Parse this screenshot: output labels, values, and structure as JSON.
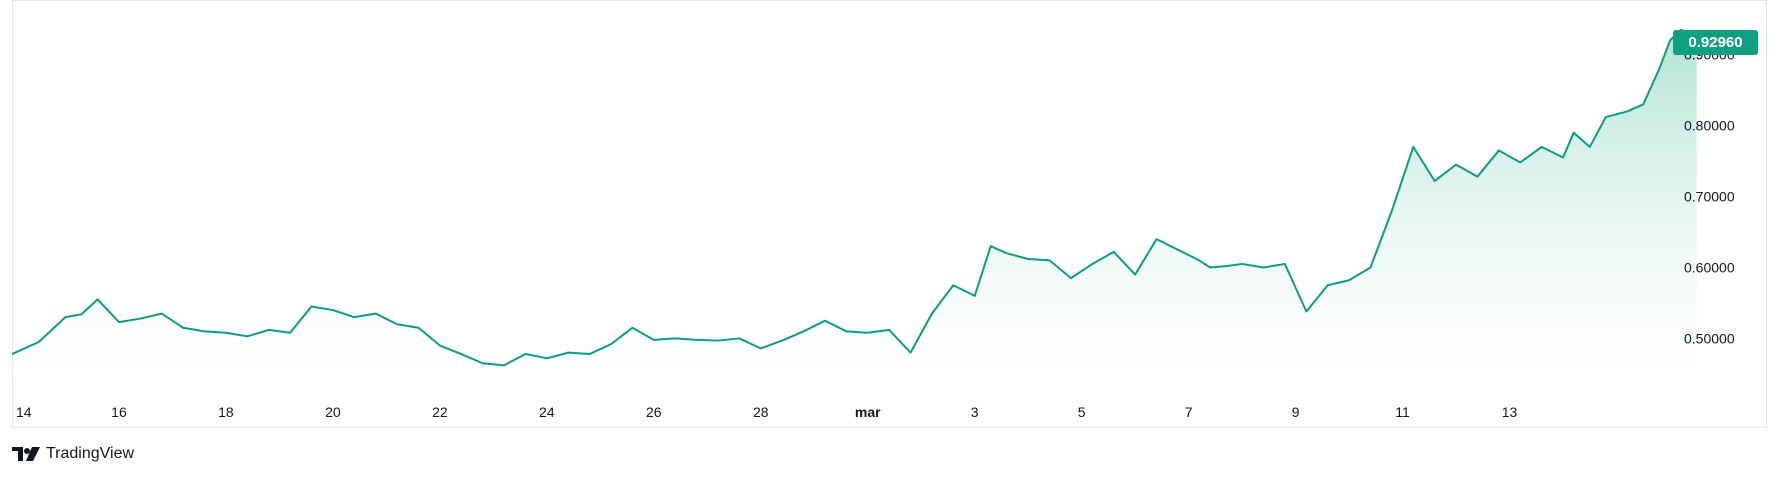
{
  "branding": {
    "name": "TradingView",
    "logo_icon": "tradingview-logo-icon"
  },
  "colors": {
    "line": "#0b9e7f",
    "area_top": "#8fd6c2",
    "area_bottom": "#ffffff",
    "badge": "#10a080",
    "axis_text": "#131722"
  },
  "chart_data": {
    "type": "area",
    "x_ticks": [
      "14",
      "16",
      "18",
      "20",
      "22",
      "24",
      "26",
      "28",
      "mar",
      "3",
      "5",
      "7",
      "9",
      "11",
      "13"
    ],
    "y_ticks": [
      "0.50000",
      "0.60000",
      "0.70000",
      "0.80000",
      "0.90000"
    ],
    "y_range": [
      0.44,
      0.97
    ],
    "x_range": [
      0,
      31
    ],
    "last_value_label": "0.92960",
    "series": [
      {
        "x": [
          0,
          0.5,
          1,
          1.3,
          1.6,
          2,
          2.4,
          2.8,
          3.2,
          3.6,
          4,
          4.4,
          4.8,
          5.2,
          5.6,
          6,
          6.4,
          6.8,
          7.2,
          7.6,
          8,
          8.4,
          8.8,
          9.2,
          9.6,
          10,
          10.4,
          10.8,
          11.2,
          11.6,
          12,
          12.4,
          12.8,
          13.2,
          13.6,
          14,
          14.4,
          14.8,
          15.2,
          15.6,
          16,
          16.4,
          16.8,
          17.2,
          17.6,
          18,
          18.3,
          18.6,
          19,
          19.4,
          19.8,
          20.2,
          20.6,
          21,
          21.4,
          21.8,
          22.2,
          22.4,
          22.7,
          23,
          23.4,
          23.8,
          24.2,
          24.6,
          25,
          25.4,
          25.8,
          26.2,
          26.6,
          27,
          27.4,
          27.8,
          28.2,
          28.6,
          29,
          29.2,
          29.5,
          29.8
        ],
        "values": [
          0.478,
          0.495,
          0.53,
          0.534,
          0.555,
          0.523,
          0.528,
          0.535,
          0.515,
          0.51,
          0.508,
          0.503,
          0.512,
          0.508,
          0.545,
          0.54,
          0.53,
          0.535,
          0.52,
          0.515,
          0.49,
          0.478,
          0.465,
          0.462,
          0.478,
          0.472,
          0.48,
          0.478,
          0.492,
          0.515,
          0.498,
          0.5,
          0.498,
          0.497,
          0.5,
          0.486,
          0.497,
          0.51,
          0.525,
          0.51,
          0.508,
          0.512,
          0.48,
          0.535,
          0.575,
          0.56,
          0.63,
          0.62,
          0.612,
          0.61,
          0.585,
          0.605,
          0.622,
          0.59,
          0.64,
          0.625,
          0.61,
          0.6,
          0.602,
          0.605,
          0.6,
          0.605,
          0.538,
          0.575,
          0.582,
          0.6,
          0.68,
          0.77,
          0.722,
          0.745,
          0.728,
          0.765,
          0.748,
          0.77,
          0.755,
          0.79,
          0.77,
          0.812
        ],
        "extra_x": [
          30.2,
          30.5,
          30.8,
          31.0,
          31.2,
          31.5
        ],
        "extra_values": [
          0.82,
          0.83,
          0.88,
          0.92,
          0.935,
          0.928
        ]
      }
    ]
  }
}
